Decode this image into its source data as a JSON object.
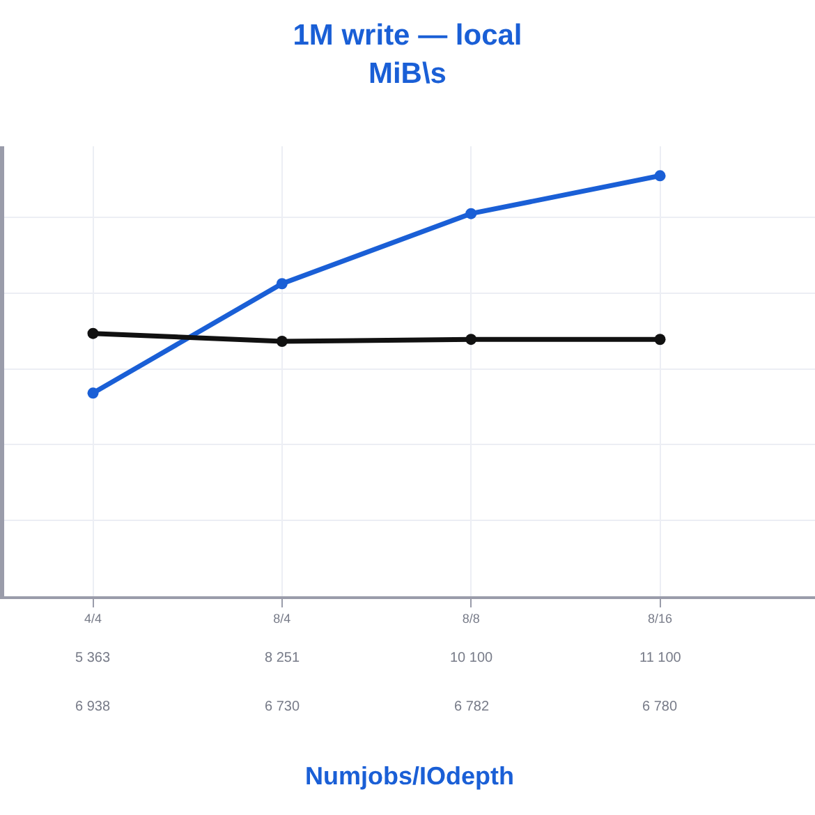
{
  "chart_data": {
    "type": "line",
    "title": "1M write — local",
    "subtitle": "MiB\\s",
    "annotations": [
      "Numjobs/IOdepth"
    ],
    "categories": [
      "4/4",
      "8/4",
      "8/8",
      "8/16"
    ],
    "series": [
      {
        "color": "#1a5fd6",
        "values": [
          5363,
          8251,
          10100,
          11100
        ],
        "value_labels": [
          "5 363",
          "8 251",
          "10 100",
          "11 100"
        ]
      },
      {
        "color": "#111111",
        "values": [
          6938,
          6730,
          6782,
          6780
        ],
        "value_labels": [
          "6 938",
          "6 730",
          "6 782",
          "6 780"
        ]
      }
    ],
    "grid": true,
    "marker": "circle",
    "line_style": "solid"
  }
}
